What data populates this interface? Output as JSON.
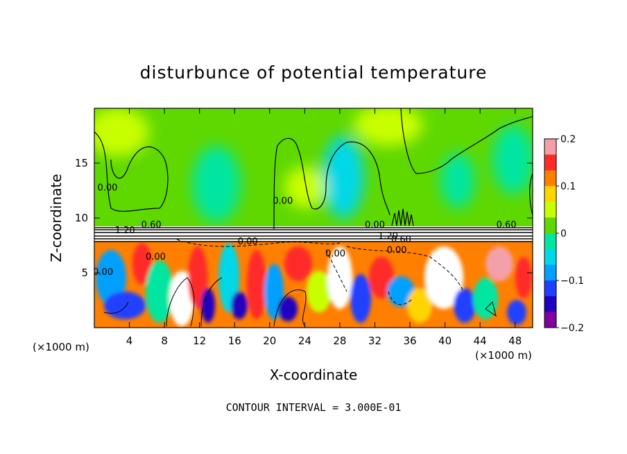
{
  "chart_data": {
    "type": "heatmap",
    "title": "disturbunce of potential temperature",
    "xlabel": "X-coordinate",
    "ylabel": "Z-coordinate",
    "x_unit_left": "(×1000 m)",
    "x_unit_right": "(×1000 m)",
    "xlim": [
      0,
      50
    ],
    "ylim": [
      0,
      20
    ],
    "x_ticks": [
      4,
      8,
      12,
      16,
      20,
      24,
      28,
      32,
      36,
      40,
      44,
      48
    ],
    "y_ticks": [
      5,
      10,
      15
    ],
    "colorbar": {
      "range": [
        -0.2,
        0.2
      ],
      "ticks": [
        0.2,
        0.1,
        0,
        -0.1,
        -0.2
      ],
      "tick_labels": [
        "0.2",
        "0.1",
        "0",
        "−0.1",
        "−0.2"
      ],
      "colors": [
        "#f4a0a8",
        "#ff2a2a",
        "#ff7f00",
        "#ffd400",
        "#c8ff00",
        "#5fd800",
        "#00e6a0",
        "#00d8e8",
        "#00a0ff",
        "#2040ff",
        "#2000c0",
        "#8000a0"
      ]
    },
    "contour_interval": "CONTOUR INTERVAL = 3.000E-01",
    "contour_labels": [
      {
        "text": "0.00",
        "x": 1.5,
        "z": 12.5
      },
      {
        "text": "0.00",
        "x": 21.5,
        "z": 11.3
      },
      {
        "text": "0.60",
        "x": 6.5,
        "z": 9.1
      },
      {
        "text": "1.20",
        "x": 3.5,
        "z": 8.6
      },
      {
        "text": "0.00",
        "x": 17.5,
        "z": 7.6
      },
      {
        "text": "0.00",
        "x": 7.0,
        "z": 6.2
      },
      {
        "text": "0.00",
        "x": 1.0,
        "z": 4.8
      },
      {
        "text": "0.00",
        "x": 27.5,
        "z": 6.5
      },
      {
        "text": "0.00",
        "x": 32.0,
        "z": 9.1
      },
      {
        "text": "1.20",
        "x": 33.5,
        "z": 8.1
      },
      {
        "text": "0.60",
        "x": 35.0,
        "z": 7.8
      },
      {
        "text": "0.00",
        "x": 34.5,
        "z": 6.8
      },
      {
        "text": "0.60",
        "x": 47.0,
        "z": 9.1
      }
    ]
  }
}
